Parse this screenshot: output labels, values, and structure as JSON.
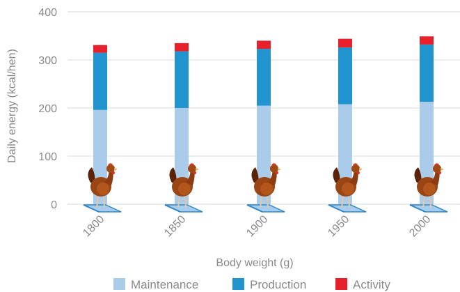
{
  "chart_data": {
    "type": "bar",
    "stacked": true,
    "categories": [
      "1800",
      "1850",
      "1900",
      "1950",
      "2000"
    ],
    "series": [
      {
        "name": "Maintenance",
        "color": "#aacbea",
        "values": [
          196,
          200,
          205,
          208,
          213
        ]
      },
      {
        "name": "Production",
        "color": "#2194cf",
        "values": [
          119,
          118,
          118,
          118,
          119
        ]
      },
      {
        "name": "Activity",
        "color": "#e8202c",
        "values": [
          16,
          17,
          17,
          18,
          17
        ]
      }
    ],
    "xlabel": "Body weight (g)",
    "ylabel": "Daily energy (kcal/hen)",
    "ylim": [
      0,
      400
    ],
    "yticks": [
      0,
      100,
      200,
      300,
      400
    ],
    "grid": true,
    "legend_position": "bottom",
    "icons": [
      "hen-on-scale-icon"
    ]
  }
}
